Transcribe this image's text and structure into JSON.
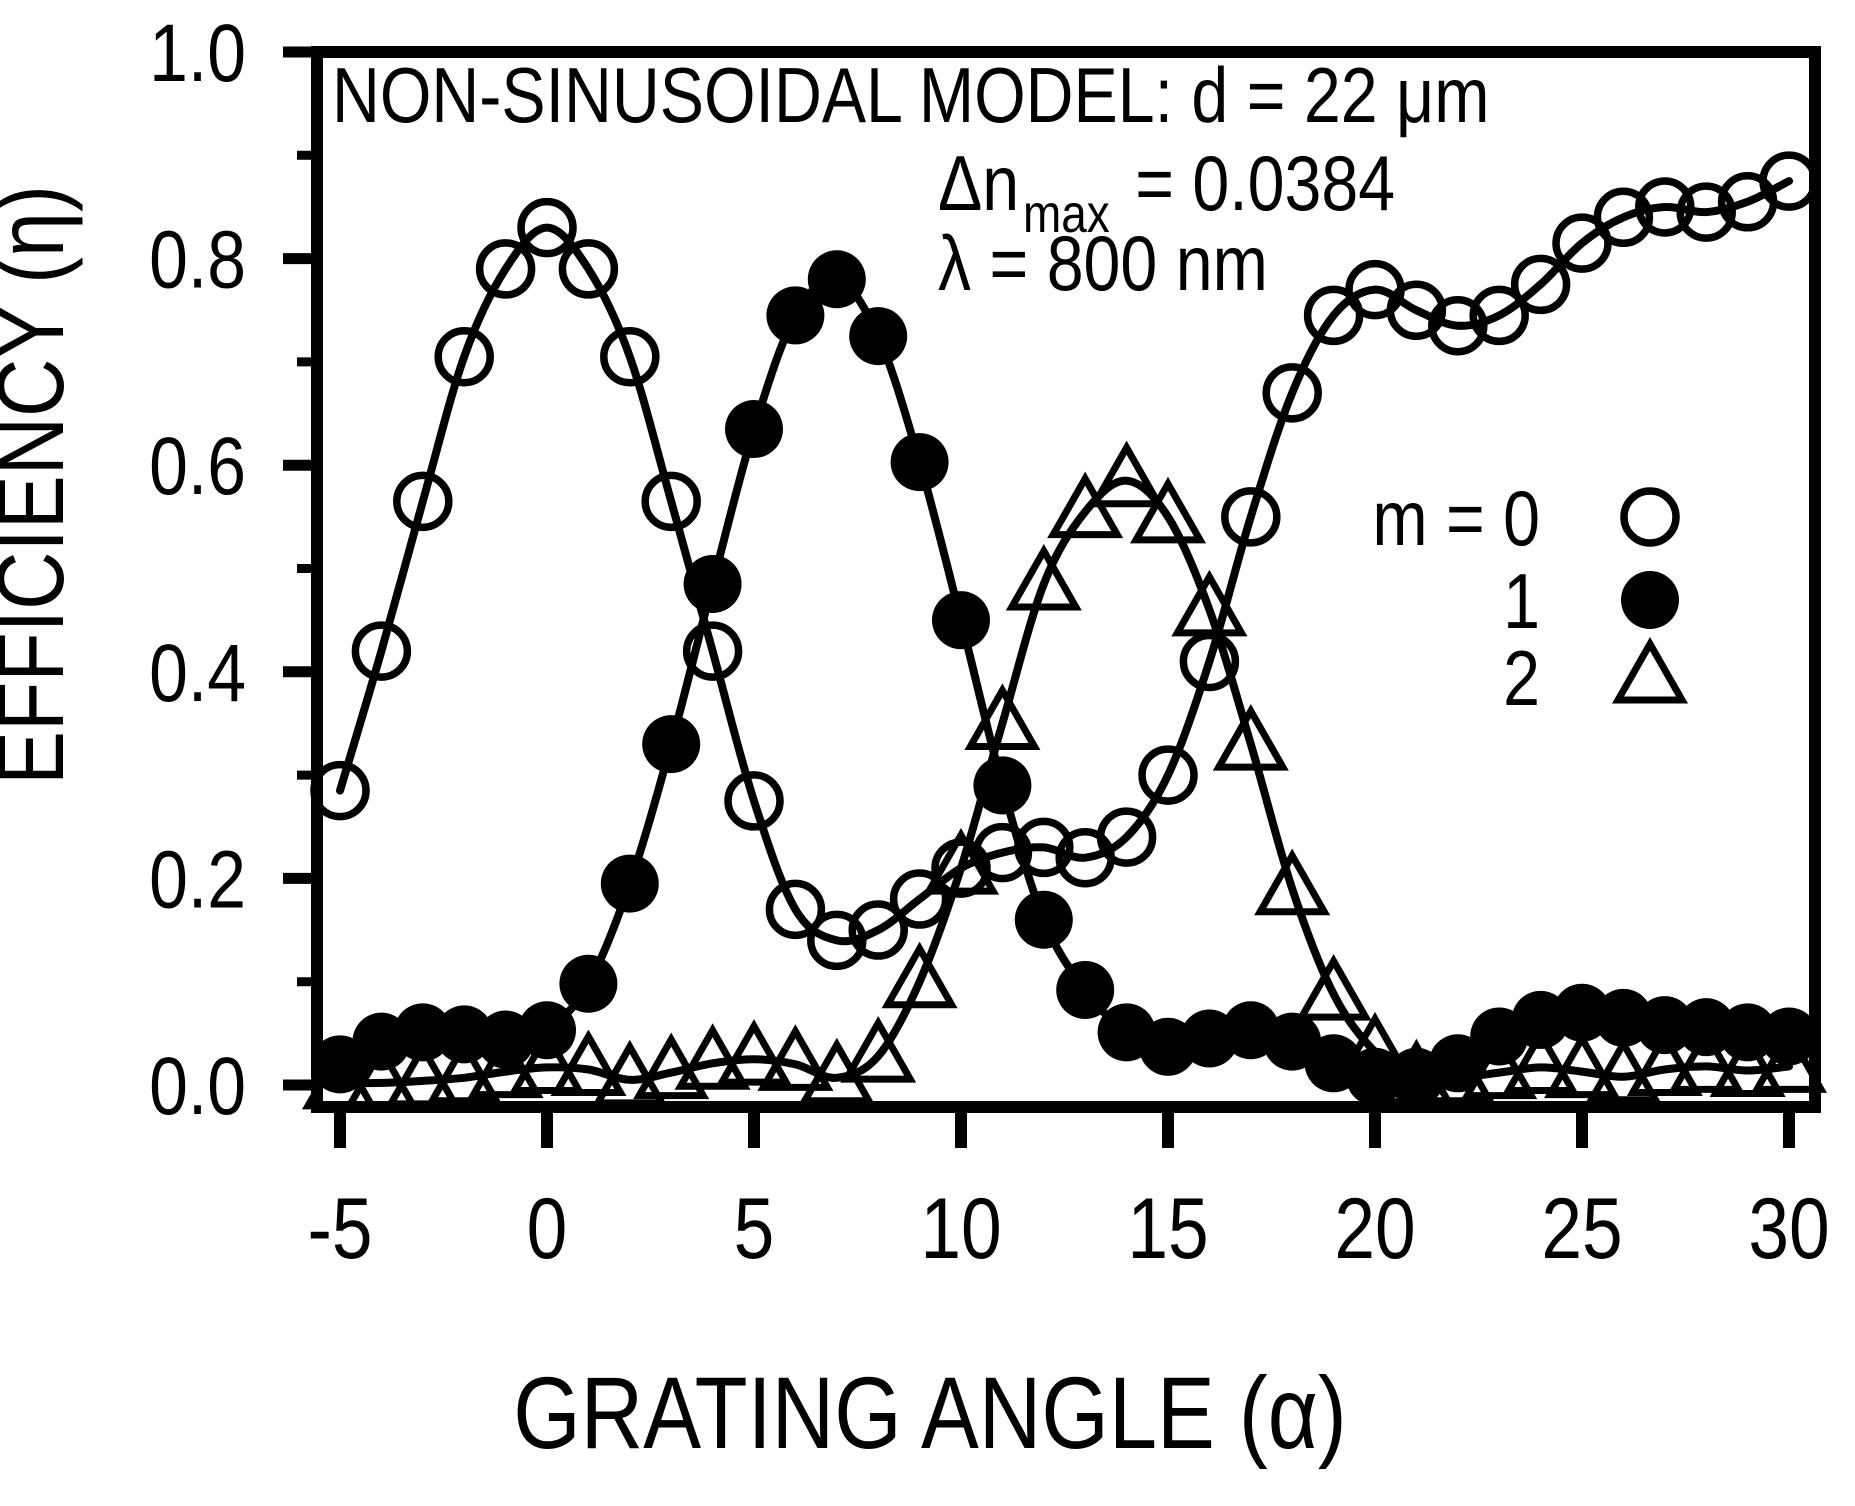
{
  "chart_data": {
    "type": "line",
    "title": "NON-SINUSOIDAL MODEL: d = 22 μm",
    "annotations": {
      "delta_n": {
        "prefix": "Δn",
        "sub": "max",
        "value": "= 0.0384"
      },
      "lambda": "λ = 800 nm"
    },
    "xlabel": "GRATING ANGLE (α)",
    "ylabel": "EFFICIENCY (η)",
    "x": [
      -5,
      -4,
      -3,
      -2,
      -1,
      0,
      1,
      2,
      3,
      4,
      5,
      6,
      7,
      8,
      9,
      10,
      11,
      12,
      13,
      14,
      15,
      16,
      17,
      18,
      19,
      20,
      21,
      22,
      23,
      24,
      25,
      26,
      27,
      28,
      29,
      30
    ],
    "series": [
      {
        "name": "m = 0",
        "marker": "open-circle",
        "values": [
          0.285,
          0.42,
          0.565,
          0.705,
          0.79,
          0.83,
          0.79,
          0.705,
          0.565,
          0.42,
          0.275,
          0.17,
          0.14,
          0.15,
          0.18,
          0.21,
          0.225,
          0.23,
          0.22,
          0.24,
          0.3,
          0.41,
          0.55,
          0.67,
          0.745,
          0.77,
          0.75,
          0.735,
          0.745,
          0.775,
          0.815,
          0.84,
          0.85,
          0.845,
          0.855,
          0.875
        ]
      },
      {
        "name": "m = 1",
        "marker": "filled-circle",
        "values": [
          0.02,
          0.042,
          0.051,
          0.049,
          0.044,
          0.053,
          0.098,
          0.195,
          0.33,
          0.485,
          0.635,
          0.745,
          0.78,
          0.725,
          0.603,
          0.45,
          0.29,
          0.16,
          0.092,
          0.051,
          0.037,
          0.045,
          0.053,
          0.042,
          0.021,
          0.008,
          0.008,
          0.021,
          0.047,
          0.063,
          0.07,
          0.065,
          0.058,
          0.056,
          0.051,
          0.047
        ]
      },
      {
        "name": "m = 2",
        "marker": "open-triangle",
        "values": [
          0.002,
          0.002,
          0.004,
          0.007,
          0.013,
          0.017,
          0.015,
          0.005,
          0.012,
          0.021,
          0.025,
          0.02,
          0.007,
          0.028,
          0.1,
          0.21,
          0.35,
          0.485,
          0.555,
          0.585,
          0.55,
          0.46,
          0.33,
          0.19,
          0.088,
          0.032,
          0.006,
          0.007,
          0.012,
          0.017,
          0.013,
          0.008,
          0.015,
          0.018,
          0.014,
          0.018
        ]
      }
    ],
    "legend": {
      "position": "right-middle",
      "items": [
        {
          "label": "m = 0",
          "marker": "open-circle"
        },
        {
          "label": "1",
          "marker": "filled-circle"
        },
        {
          "label": "2",
          "marker": "open-triangle"
        }
      ]
    },
    "x_ticks": {
      "major": [
        -5,
        0,
        5,
        10,
        15,
        20,
        25,
        30
      ],
      "labels": [
        "-5",
        "0",
        "5",
        "10",
        "15",
        "20",
        "25",
        "30"
      ]
    },
    "y_ticks": {
      "major": [
        0,
        0.2,
        0.4,
        0.6,
        0.8,
        1.0
      ],
      "labels": [
        "0.0",
        "0.2",
        "0.4",
        "0.6",
        "0.8",
        "1.0"
      ],
      "minor": [
        0.1,
        0.3,
        0.5,
        0.7,
        0.9
      ]
    },
    "xlim": [
      -5.55,
      30.65
    ],
    "ylim": [
      -0.021,
      1.0
    ],
    "grid": false,
    "line_style": "solid",
    "colors": {
      "foreground": "#000000",
      "background": "#ffffff"
    }
  }
}
